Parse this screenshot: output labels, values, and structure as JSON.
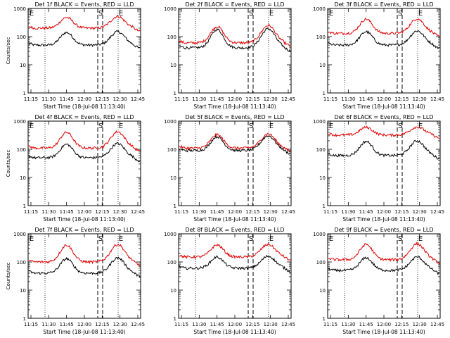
{
  "figure": {
    "colors": {
      "events": "#000000",
      "lld": "#e00000",
      "axis": "#000000",
      "background": "#ffffff"
    }
  },
  "chart_data": [
    {
      "type": "line",
      "title": "Det 1f BLACK = Events, RED = LLD",
      "xlabel": "Start Time (18-Jul-08 11:13:40)",
      "ylabel": "Counts/sec",
      "x_ticks": [
        "11:15",
        "11:30",
        "11:45",
        "12:00",
        "12:15",
        "12:30",
        "12:45"
      ],
      "y_ticks": [
        "1",
        "10",
        "100",
        "1000"
      ],
      "yscale": "log",
      "ylim": [
        1,
        1000
      ],
      "markers": [
        "E",
        "S",
        "E"
      ],
      "series": [
        {
          "name": "Events",
          "color": "#000000",
          "base": 50,
          "peak1": 140,
          "peak2": 150
        },
        {
          "name": "LLD",
          "color": "#e00000",
          "base": 200,
          "peak1": 480,
          "peak2": 520
        }
      ]
    },
    {
      "type": "line",
      "title": "Det 2f BLACK = Events, RED = LLD",
      "xlabel": "Start Time (18-Jul-08 11:13:40)",
      "ylabel": "",
      "x_ticks": [
        "11:15",
        "11:30",
        "11:45",
        "12:00",
        "12:15",
        "12:30",
        "12:45"
      ],
      "y_ticks": [
        "1",
        "10",
        "100",
        "1000"
      ],
      "yscale": "log",
      "ylim": [
        1,
        1000
      ],
      "markers": [
        "",
        "S",
        "E"
      ],
      "series": [
        {
          "name": "Events",
          "color": "#000000",
          "base": 40,
          "peak1": 180,
          "peak2": 190
        },
        {
          "name": "LLD",
          "color": "#e00000",
          "base": 60,
          "peak1": 230,
          "peak2": 250
        }
      ]
    },
    {
      "type": "line",
      "title": "Det 3f BLACK = Events, RED = LLD",
      "xlabel": "Start Time (18-Jul-08 11:13:40)",
      "ylabel": "",
      "x_ticks": [
        "11:15",
        "11:30",
        "11:45",
        "12:00",
        "12:15",
        "12:30",
        "12:45"
      ],
      "y_ticks": [
        "1",
        "10",
        "100",
        "1000"
      ],
      "yscale": "log",
      "ylim": [
        1,
        1000
      ],
      "markers": [
        "E",
        "S",
        "E"
      ],
      "series": [
        {
          "name": "Events",
          "color": "#000000",
          "base": 50,
          "peak1": 150,
          "peak2": 160
        },
        {
          "name": "LLD",
          "color": "#e00000",
          "base": 130,
          "peak1": 420,
          "peak2": 430
        }
      ]
    },
    {
      "type": "line",
      "title": "Det 4f BLACK = Events, RED = LLD",
      "xlabel": "Start Time (18-Jul-08 11:13:40)",
      "ylabel": "Counts/sec",
      "x_ticks": [
        "11:15",
        "11:30",
        "11:45",
        "12:00",
        "12:15",
        "12:30",
        "12:45"
      ],
      "y_ticks": [
        "1",
        "10",
        "100",
        "1000"
      ],
      "yscale": "log",
      "ylim": [
        1,
        1000
      ],
      "markers": [
        "E",
        "S",
        "E"
      ],
      "series": [
        {
          "name": "Events",
          "color": "#000000",
          "base": 50,
          "peak1": 150,
          "peak2": 160
        },
        {
          "name": "LLD",
          "color": "#e00000",
          "base": 110,
          "peak1": 400,
          "peak2": 420
        }
      ]
    },
    {
      "type": "line",
      "title": "Det 5f BLACK = Events, RED = LLD",
      "xlabel": "Start Time (18-Jul-08 11:13:40)",
      "ylabel": "",
      "x_ticks": [
        "11:15",
        "11:30",
        "11:45",
        "12:00",
        "12:15",
        "12:30",
        "12:45"
      ],
      "y_ticks": [
        "1",
        "10",
        "100",
        "1000"
      ],
      "yscale": "log",
      "ylim": [
        1,
        1000
      ],
      "markers": [
        "",
        "S",
        "E"
      ],
      "series": [
        {
          "name": "Events",
          "color": "#000000",
          "base": 90,
          "peak1": 280,
          "peak2": 300
        },
        {
          "name": "LLD",
          "color": "#e00000",
          "base": 110,
          "peak1": 330,
          "peak2": 350
        }
      ]
    },
    {
      "type": "line",
      "title": "Det 6f BLACK = Events, RED = LLD",
      "xlabel": "Start Time (18-Jul-08 11:13:40)",
      "ylabel": "",
      "x_ticks": [
        "11:15",
        "11:30",
        "11:45",
        "12:00",
        "12:15",
        "12:30",
        "12:45"
      ],
      "y_ticks": [
        "1",
        "10",
        "100",
        "1000"
      ],
      "yscale": "log",
      "ylim": [
        1,
        1000
      ],
      "markers": [
        "E",
        "S",
        "E"
      ],
      "series": [
        {
          "name": "Events",
          "color": "#000000",
          "base": 60,
          "peak1": 190,
          "peak2": 200
        },
        {
          "name": "LLD",
          "color": "#e00000",
          "base": 320,
          "peak1": 600,
          "peak2": 620
        }
      ]
    },
    {
      "type": "line",
      "title": "Det 7f BLACK = Events, RED = LLD",
      "xlabel": "Start Time (18-Jul-08 11:13:40)",
      "ylabel": "Counts/sec",
      "x_ticks": [
        "11:15",
        "11:30",
        "11:45",
        "12:00",
        "12:15",
        "12:30",
        "12:45"
      ],
      "y_ticks": [
        "1",
        "10",
        "100",
        "1000"
      ],
      "yscale": "log",
      "ylim": [
        1,
        1000
      ],
      "markers": [
        "E",
        "S",
        "E"
      ],
      "series": [
        {
          "name": "Events",
          "color": "#000000",
          "base": 40,
          "peak1": 130,
          "peak2": 140
        },
        {
          "name": "LLD",
          "color": "#e00000",
          "base": 100,
          "peak1": 400,
          "peak2": 420
        }
      ]
    },
    {
      "type": "line",
      "title": "Det 8f BLACK = Events, RED = LLD",
      "xlabel": "Start Time (18-Jul-08 11:13:40)",
      "ylabel": "",
      "x_ticks": [
        "11:15",
        "11:30",
        "11:45",
        "12:00",
        "12:15",
        "12:30",
        "12:45"
      ],
      "y_ticks": [
        "1",
        "10",
        "100",
        "1000"
      ],
      "yscale": "log",
      "ylim": [
        1,
        1000
      ],
      "markers": [
        "",
        "S",
        "E"
      ],
      "series": [
        {
          "name": "Events",
          "color": "#000000",
          "base": 60,
          "peak1": 150,
          "peak2": 160
        },
        {
          "name": "LLD",
          "color": "#e00000",
          "base": 150,
          "peak1": 400,
          "peak2": 420
        }
      ]
    },
    {
      "type": "line",
      "title": "Det 9f BLACK = Events, RED = LLD",
      "xlabel": "Start Time (18-Jul-08 11:13:40)",
      "ylabel": "",
      "x_ticks": [
        "11:15",
        "11:30",
        "11:45",
        "12:00",
        "12:15",
        "12:30",
        "12:45"
      ],
      "y_ticks": [
        "1",
        "10",
        "100",
        "1000"
      ],
      "yscale": "log",
      "ylim": [
        1,
        1000
      ],
      "markers": [
        "E",
        "S",
        "E"
      ],
      "series": [
        {
          "name": "Events",
          "color": "#000000",
          "base": 50,
          "peak1": 140,
          "peak2": 150
        },
        {
          "name": "LLD",
          "color": "#e00000",
          "base": 120,
          "peak1": 420,
          "peak2": 440
        }
      ]
    }
  ]
}
